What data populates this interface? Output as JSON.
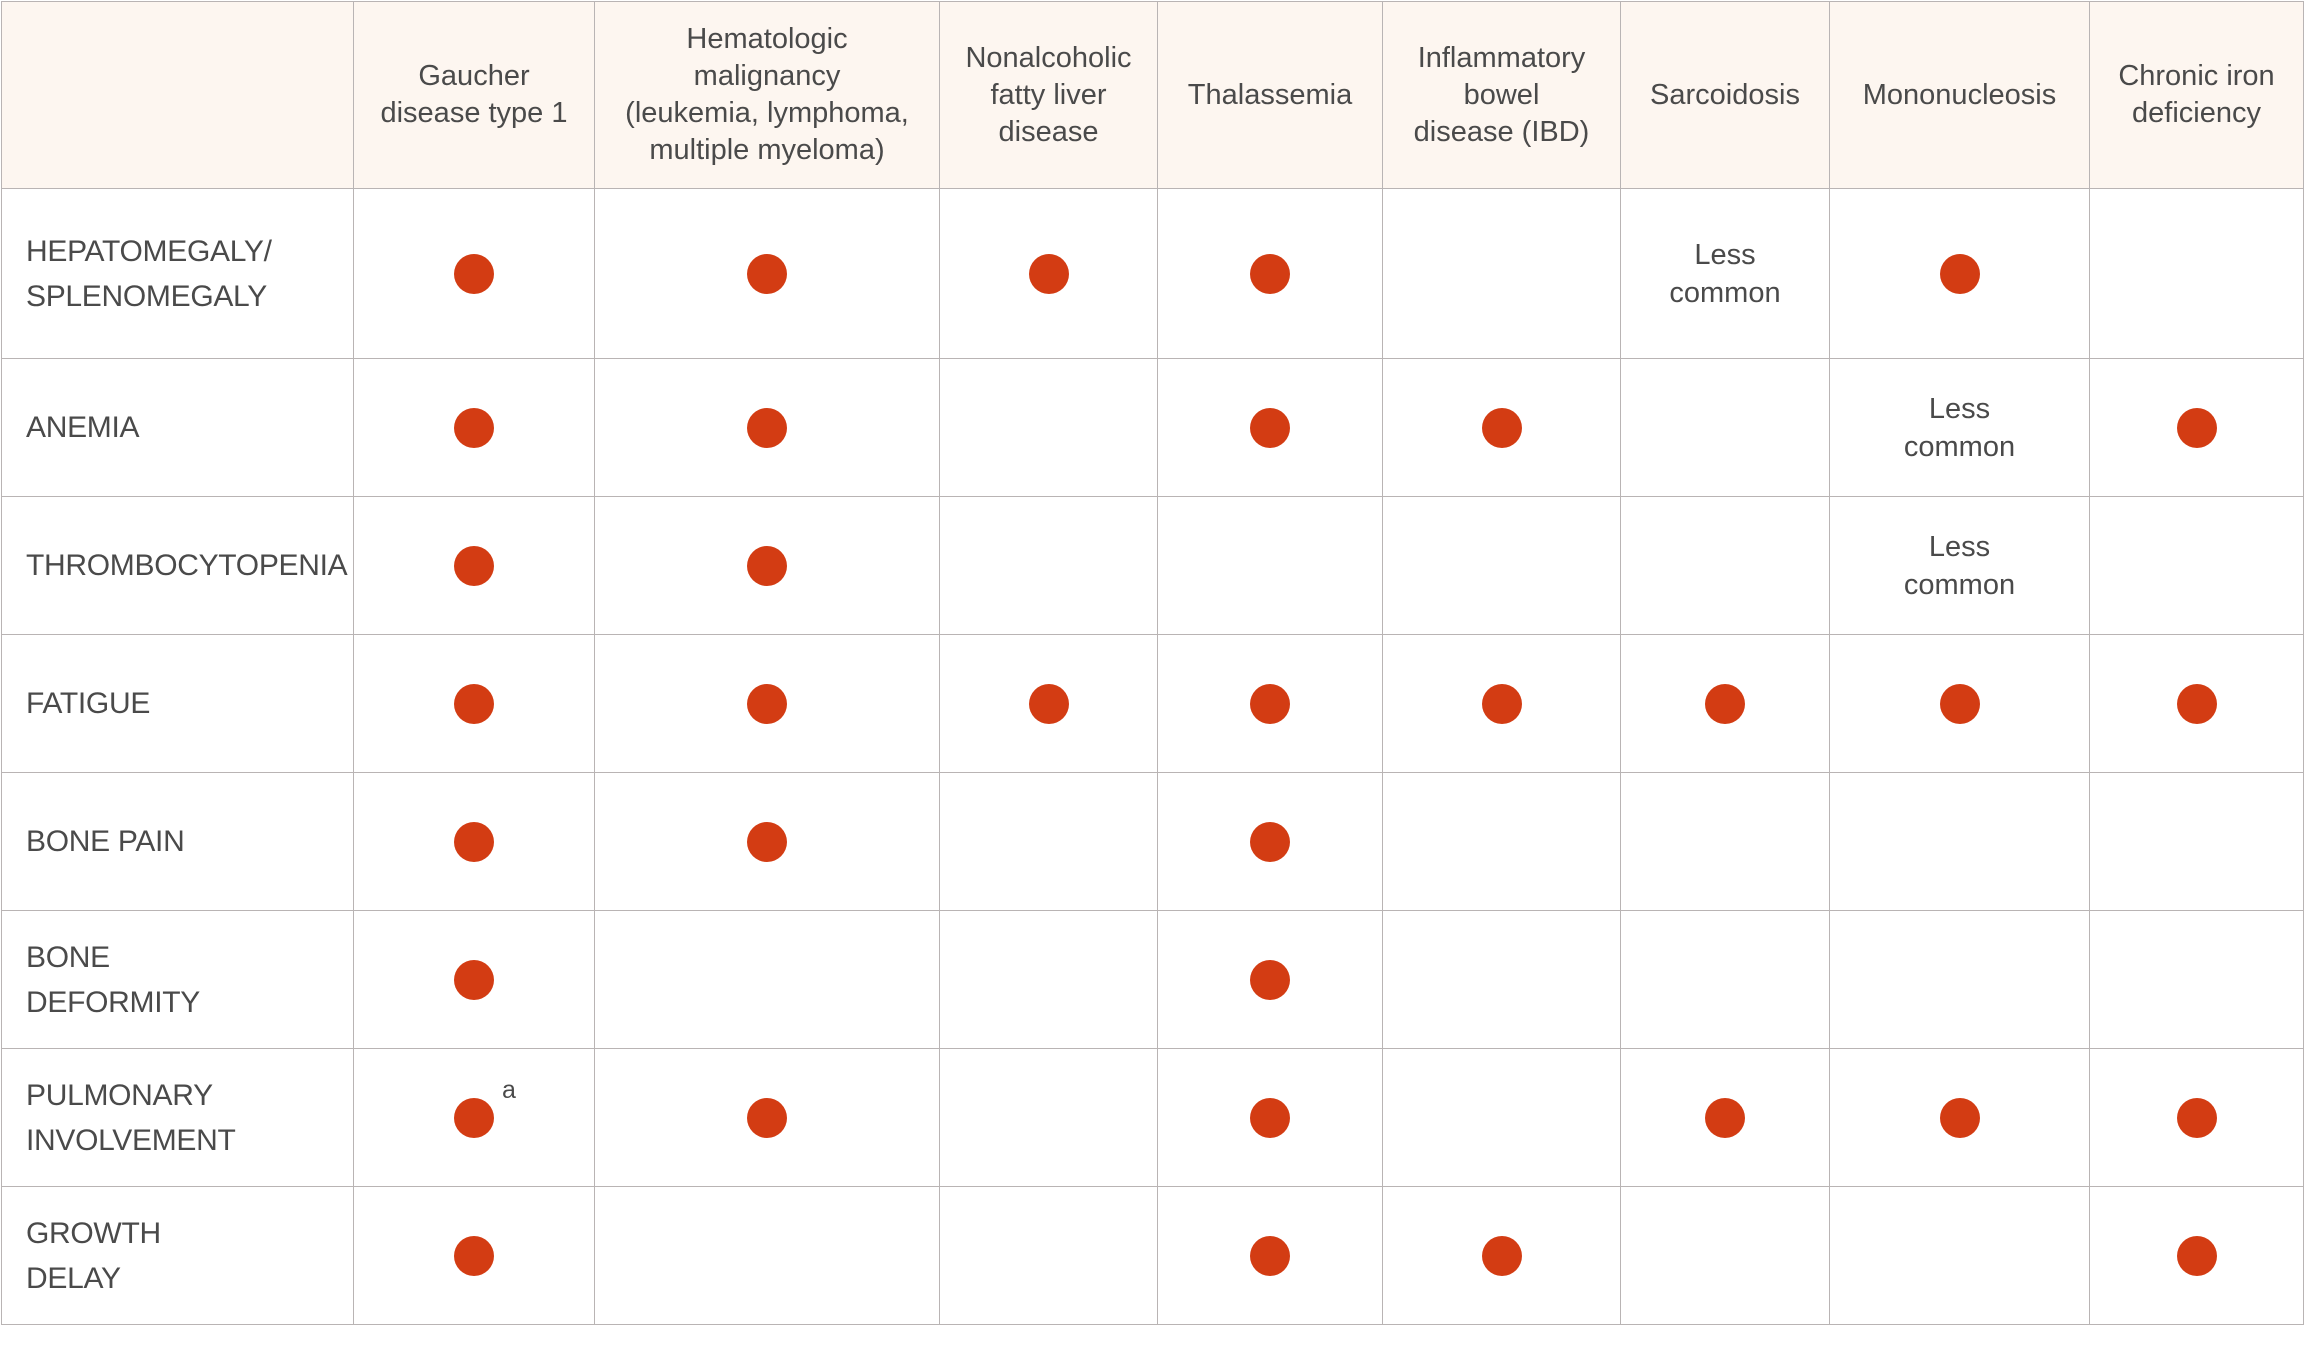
{
  "table": {
    "header": [
      "",
      "Gaucher\ndisease type 1",
      "Hematologic\nmalignancy\n(leukemia, lymphoma,\nmultiple myeloma)",
      "Nonalcoholic\nfatty liver\ndisease",
      "Thalassemia",
      "Inflammatory\nbowel\ndisease (IBD)",
      "Sarcoidosis",
      "Mononucleosis",
      "Chronic iron\ndeficiency"
    ],
    "rows": [
      {
        "label": "HEPATOMEGALY/\nSPLENOMEGALY",
        "cells": [
          {
            "dot": true
          },
          {
            "dot": true
          },
          {
            "dot": true
          },
          {
            "dot": true
          },
          {
            "dot": false
          },
          {
            "text": "Less\ncommon"
          },
          {
            "dot": true
          },
          {
            "dot": false
          }
        ]
      },
      {
        "label": "ANEMIA",
        "cells": [
          {
            "dot": true
          },
          {
            "dot": true
          },
          {
            "dot": false
          },
          {
            "dot": true
          },
          {
            "dot": true
          },
          {
            "dot": false
          },
          {
            "text": "Less\ncommon"
          },
          {
            "dot": true
          }
        ]
      },
      {
        "label": "THROMBOCYTOPENIA",
        "cells": [
          {
            "dot": true
          },
          {
            "dot": true
          },
          {
            "dot": false
          },
          {
            "dot": false
          },
          {
            "dot": false
          },
          {
            "dot": false
          },
          {
            "text": "Less\ncommon"
          },
          {
            "dot": false
          }
        ]
      },
      {
        "label": "FATIGUE",
        "cells": [
          {
            "dot": true
          },
          {
            "dot": true
          },
          {
            "dot": true
          },
          {
            "dot": true
          },
          {
            "dot": true
          },
          {
            "dot": true
          },
          {
            "dot": true
          },
          {
            "dot": true
          }
        ]
      },
      {
        "label": "BONE PAIN",
        "cells": [
          {
            "dot": true
          },
          {
            "dot": true
          },
          {
            "dot": false
          },
          {
            "dot": true
          },
          {
            "dot": false
          },
          {
            "dot": false
          },
          {
            "dot": false
          },
          {
            "dot": false
          }
        ]
      },
      {
        "label": "BONE\nDEFORMITY",
        "cells": [
          {
            "dot": true
          },
          {
            "dot": false
          },
          {
            "dot": false
          },
          {
            "dot": true
          },
          {
            "dot": false
          },
          {
            "dot": false
          },
          {
            "dot": false
          },
          {
            "dot": false
          }
        ]
      },
      {
        "label": "PULMONARY\nINVOLVEMENT",
        "cells": [
          {
            "dot": true,
            "sup": "a"
          },
          {
            "dot": true
          },
          {
            "dot": false
          },
          {
            "dot": true
          },
          {
            "dot": false
          },
          {
            "dot": true
          },
          {
            "dot": true
          },
          {
            "dot": true
          }
        ]
      },
      {
        "label": "GROWTH\nDELAY",
        "cells": [
          {
            "dot": true
          },
          {
            "dot": false
          },
          {
            "dot": false
          },
          {
            "dot": true
          },
          {
            "dot": true
          },
          {
            "dot": false
          },
          {
            "dot": false
          },
          {
            "dot": true
          }
        ]
      }
    ]
  },
  "colors": {
    "dot": "#d33c13",
    "header_bg": "#fdf6f0",
    "border": "#b9b4b4",
    "text": "#4a4a4a"
  },
  "icons": {
    "present_marker": "filled-circle"
  }
}
